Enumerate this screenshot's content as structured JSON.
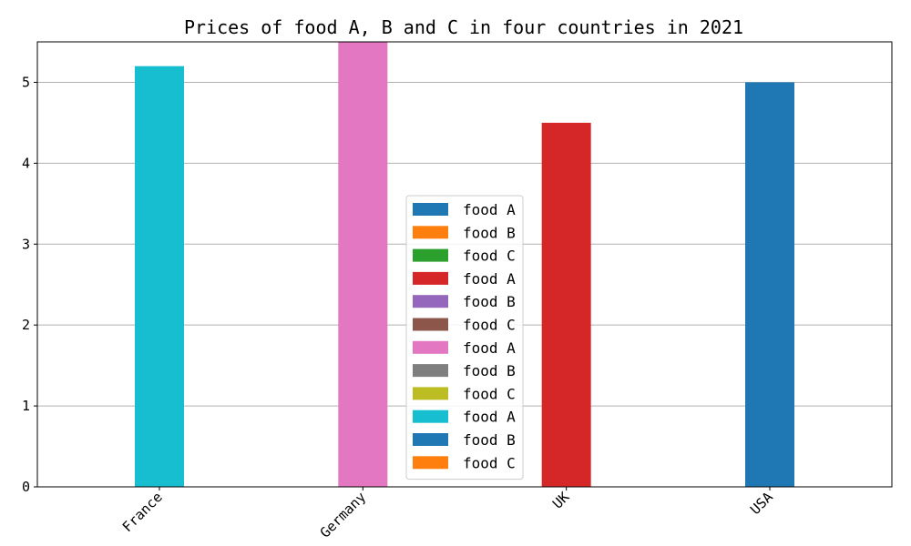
{
  "chart_data": {
    "type": "bar",
    "title": "Prices of food A, B and C in four countries in 2021",
    "xlabel": "",
    "ylabel": "",
    "categories": [
      "France",
      "Germany",
      "UK",
      "USA"
    ],
    "ylim": [
      0,
      5.5
    ],
    "yticks": [
      0,
      1,
      2,
      3,
      4,
      5
    ],
    "grid": "y",
    "legend_position": "center-bottom",
    "series": [
      {
        "name": "food A",
        "color": "#1f77b4",
        "values": [
          null,
          null,
          null,
          5.0
        ]
      },
      {
        "name": "food B",
        "color": "#ff7f0e",
        "values": [
          null,
          null,
          null,
          null
        ]
      },
      {
        "name": "food C",
        "color": "#2ca02c",
        "values": [
          null,
          null,
          null,
          null
        ]
      },
      {
        "name": "food A",
        "color": "#d62728",
        "values": [
          null,
          null,
          4.5,
          null
        ]
      },
      {
        "name": "food B",
        "color": "#9467bd",
        "values": [
          null,
          null,
          null,
          null
        ]
      },
      {
        "name": "food C",
        "color": "#8c564b",
        "values": [
          null,
          null,
          null,
          null
        ]
      },
      {
        "name": "food A",
        "color": "#e377c2",
        "values": [
          null,
          5.5,
          null,
          null
        ]
      },
      {
        "name": "food B",
        "color": "#7f7f7f",
        "values": [
          null,
          null,
          null,
          null
        ]
      },
      {
        "name": "food C",
        "color": "#bcbd22",
        "values": [
          null,
          null,
          null,
          null
        ]
      },
      {
        "name": "food A",
        "color": "#17becf",
        "values": [
          5.2,
          null,
          null,
          null
        ]
      },
      {
        "name": "food B",
        "color": "#1f77b4",
        "values": [
          null,
          null,
          null,
          null
        ]
      },
      {
        "name": "food C",
        "color": "#ff7f0e",
        "values": [
          null,
          null,
          null,
          null
        ]
      }
    ]
  }
}
